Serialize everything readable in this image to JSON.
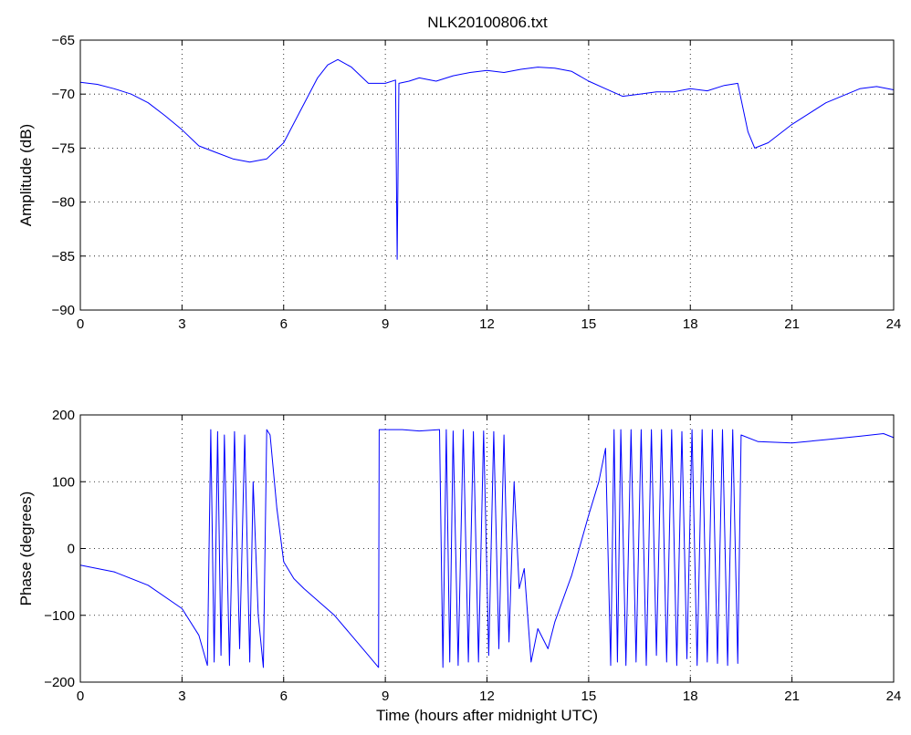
{
  "figure_title": "NLK20100806.txt",
  "colors": {
    "series": "#0000ff",
    "axes": "#000000",
    "background": "#ffffff"
  },
  "chart_data": [
    {
      "type": "line",
      "title": "NLK20100806.txt",
      "xlabel": "",
      "ylabel": "Amplitude (dB)",
      "xlim": [
        0,
        24
      ],
      "ylim": [
        -90,
        -65
      ],
      "xticks": [
        0,
        3,
        6,
        9,
        12,
        15,
        18,
        21,
        24
      ],
      "yticks": [
        -90,
        -85,
        -80,
        -75,
        -70,
        -65
      ],
      "grid": true,
      "series": [
        {
          "points": [
            [
              0,
              -68.9
            ],
            [
              0.5,
              -69.1
            ],
            [
              1.0,
              -69.5
            ],
            [
              1.5,
              -70.0
            ],
            [
              2.0,
              -70.8
            ],
            [
              2.5,
              -72.0
            ],
            [
              3.0,
              -73.3
            ],
            [
              3.5,
              -74.8
            ],
            [
              4.0,
              -75.4
            ],
            [
              4.5,
              -76.0
            ],
            [
              5.0,
              -76.3
            ],
            [
              5.5,
              -76.0
            ],
            [
              6.0,
              -74.5
            ],
            [
              6.5,
              -71.5
            ],
            [
              7.0,
              -68.5
            ],
            [
              7.3,
              -67.3
            ],
            [
              7.6,
              -66.8
            ],
            [
              8.0,
              -67.5
            ],
            [
              8.5,
              -69.0
            ],
            [
              9.0,
              -69.0
            ],
            [
              9.3,
              -68.7
            ],
            [
              9.35,
              -85.3
            ],
            [
              9.4,
              -69.0
            ],
            [
              9.7,
              -68.8
            ],
            [
              10.0,
              -68.5
            ],
            [
              10.5,
              -68.8
            ],
            [
              11.0,
              -68.3
            ],
            [
              11.5,
              -68.0
            ],
            [
              12.0,
              -67.8
            ],
            [
              12.5,
              -68.0
            ],
            [
              13.0,
              -67.7
            ],
            [
              13.5,
              -67.5
            ],
            [
              14.0,
              -67.6
            ],
            [
              14.5,
              -67.9
            ],
            [
              15.0,
              -68.8
            ],
            [
              15.5,
              -69.5
            ],
            [
              16.0,
              -70.2
            ],
            [
              16.5,
              -70.0
            ],
            [
              17.0,
              -69.8
            ],
            [
              17.5,
              -69.8
            ],
            [
              18.0,
              -69.5
            ],
            [
              18.5,
              -69.7
            ],
            [
              19.0,
              -69.2
            ],
            [
              19.4,
              -69.0
            ],
            [
              19.7,
              -73.5
            ],
            [
              19.9,
              -75.0
            ],
            [
              20.3,
              -74.5
            ],
            [
              21.0,
              -72.8
            ],
            [
              22.0,
              -70.8
            ],
            [
              23.0,
              -69.5
            ],
            [
              23.5,
              -69.3
            ],
            [
              24.0,
              -69.6
            ]
          ]
        }
      ]
    },
    {
      "type": "line",
      "title": "",
      "xlabel": "Time (hours after midnight UTC)",
      "ylabel": "Phase (degrees)",
      "xlim": [
        0,
        24
      ],
      "ylim": [
        -200,
        200
      ],
      "xticks": [
        0,
        3,
        6,
        9,
        12,
        15,
        18,
        21,
        24
      ],
      "yticks": [
        -200,
        -100,
        0,
        100,
        200
      ],
      "grid": true,
      "series": [
        {
          "points": [
            [
              0,
              -25
            ],
            [
              1.0,
              -35
            ],
            [
              2.0,
              -55
            ],
            [
              3.0,
              -90
            ],
            [
              3.5,
              -130
            ],
            [
              3.75,
              -175
            ],
            [
              3.85,
              178
            ],
            [
              3.95,
              -170
            ],
            [
              4.05,
              175
            ],
            [
              4.15,
              -160
            ],
            [
              4.25,
              170
            ],
            [
              4.4,
              -175
            ],
            [
              4.55,
              175
            ],
            [
              4.7,
              -150
            ],
            [
              4.85,
              170
            ],
            [
              5.0,
              -170
            ],
            [
              5.1,
              100
            ],
            [
              5.25,
              -100
            ],
            [
              5.4,
              -178
            ],
            [
              5.5,
              178
            ],
            [
              5.6,
              170
            ],
            [
              5.8,
              60
            ],
            [
              6.0,
              -20
            ],
            [
              6.3,
              -45
            ],
            [
              6.6,
              -60
            ],
            [
              7.5,
              -100
            ],
            [
              8.5,
              -160
            ],
            [
              8.8,
              -178
            ],
            [
              8.82,
              178
            ],
            [
              9.5,
              178
            ],
            [
              10.0,
              176
            ],
            [
              10.6,
              178
            ],
            [
              10.7,
              -178
            ],
            [
              10.8,
              178
            ],
            [
              10.9,
              -170
            ],
            [
              11.0,
              176
            ],
            [
              11.15,
              -175
            ],
            [
              11.3,
              178
            ],
            [
              11.45,
              -170
            ],
            [
              11.6,
              175
            ],
            [
              11.75,
              -170
            ],
            [
              11.9,
              176
            ],
            [
              12.05,
              -160
            ],
            [
              12.2,
              175
            ],
            [
              12.35,
              -150
            ],
            [
              12.5,
              170
            ],
            [
              12.65,
              -140
            ],
            [
              12.8,
              100
            ],
            [
              12.95,
              -60
            ],
            [
              13.1,
              -30
            ],
            [
              13.3,
              -170
            ],
            [
              13.5,
              -120
            ],
            [
              13.8,
              -150
            ],
            [
              14.0,
              -110
            ],
            [
              14.5,
              -40
            ],
            [
              15.0,
              50
            ],
            [
              15.3,
              100
            ],
            [
              15.5,
              150
            ],
            [
              15.65,
              -175
            ],
            [
              15.75,
              178
            ],
            [
              15.85,
              -170
            ],
            [
              15.95,
              178
            ],
            [
              16.1,
              -175
            ],
            [
              16.25,
              178
            ],
            [
              16.4,
              -170
            ],
            [
              16.55,
              178
            ],
            [
              16.7,
              -175
            ],
            [
              16.85,
              178
            ],
            [
              17.0,
              -160
            ],
            [
              17.15,
              178
            ],
            [
              17.3,
              -170
            ],
            [
              17.45,
              178
            ],
            [
              17.6,
              -175
            ],
            [
              17.75,
              175
            ],
            [
              17.9,
              -165
            ],
            [
              18.05,
              178
            ],
            [
              18.2,
              -175
            ],
            [
              18.35,
              178
            ],
            [
              18.5,
              -170
            ],
            [
              18.65,
              178
            ],
            [
              18.8,
              -172
            ],
            [
              18.95,
              178
            ],
            [
              19.1,
              -175
            ],
            [
              19.25,
              178
            ],
            [
              19.4,
              -172
            ],
            [
              19.5,
              170
            ],
            [
              20.0,
              160
            ],
            [
              21.0,
              158
            ],
            [
              22.0,
              163
            ],
            [
              23.0,
              168
            ],
            [
              23.7,
              172
            ],
            [
              24.0,
              166
            ]
          ]
        }
      ]
    }
  ]
}
